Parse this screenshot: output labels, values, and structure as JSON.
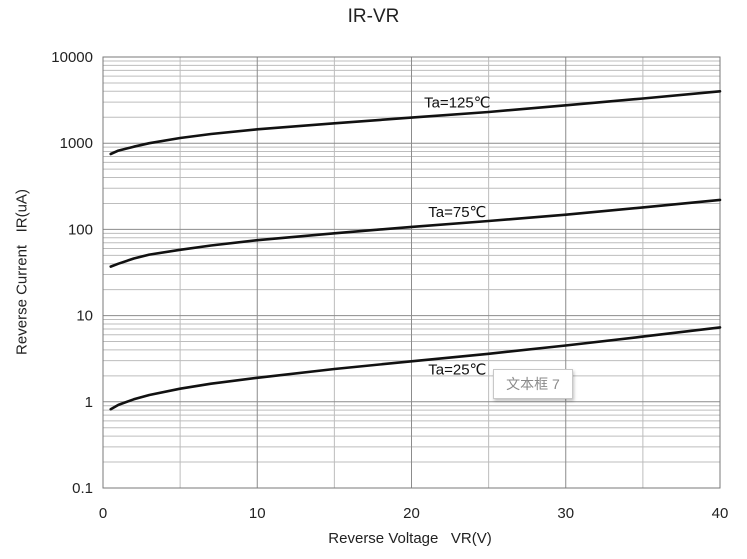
{
  "chart_data": {
    "type": "line",
    "title": "IR-VR",
    "xlabel": "Reverse Voltage   VR(V)",
    "ylabel": "Reverse Current   IR(uA)",
    "xlim": [
      0,
      40
    ],
    "ylim": [
      0.1,
      10000
    ],
    "yscale": "log",
    "grid": true,
    "x_ticks": [
      "0",
      "10",
      "20",
      "30",
      "40"
    ],
    "y_ticks": [
      "0.1",
      "1",
      "10",
      "100",
      "1000",
      "10000"
    ],
    "series": [
      {
        "name": "Ta=125℃",
        "x": [
          0.5,
          1,
          2,
          3,
          5,
          7,
          10,
          15,
          20,
          25,
          30,
          35,
          40
        ],
        "values": [
          750,
          820,
          910,
          1000,
          1150,
          1280,
          1450,
          1700,
          1980,
          2300,
          2750,
          3300,
          4000
        ]
      },
      {
        "name": "Ta=75℃",
        "x": [
          0.5,
          1,
          2,
          3,
          5,
          7,
          10,
          15,
          20,
          25,
          30,
          35,
          40
        ],
        "values": [
          37,
          40,
          46,
          51,
          58,
          65,
          75,
          90,
          107,
          125,
          148,
          180,
          220
        ]
      },
      {
        "name": "Ta=25℃",
        "x": [
          0.5,
          1,
          2,
          3,
          5,
          7,
          10,
          15,
          20,
          25,
          30,
          35,
          40
        ],
        "values": [
          0.82,
          0.92,
          1.07,
          1.2,
          1.42,
          1.62,
          1.9,
          2.4,
          2.95,
          3.6,
          4.5,
          5.7,
          7.3
        ]
      }
    ]
  },
  "textbox": {
    "label": "文本框 7"
  }
}
